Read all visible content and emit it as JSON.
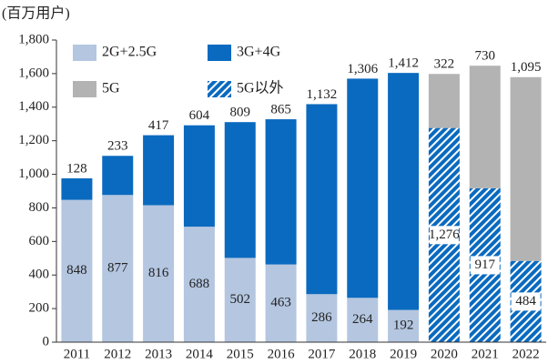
{
  "chart_data": {
    "type": "stacked_bar",
    "y_label": "(百万用户)",
    "categories": [
      "2011",
      "2012",
      "2013",
      "2014",
      "2015",
      "2016",
      "2017",
      "2018",
      "2019",
      "2020",
      "2021",
      "2022"
    ],
    "series": [
      {
        "name": "2G+2.5G",
        "color": "#b4c6e0",
        "values": [
          848,
          877,
          816,
          688,
          502,
          463,
          286,
          264,
          192,
          null,
          null,
          null
        ]
      },
      {
        "name": "3G+4G",
        "color": "#0a6abf",
        "values": [
          128,
          233,
          417,
          604,
          809,
          865,
          1132,
          1306,
          1412,
          null,
          null,
          null
        ],
        "value_labels": [
          "128",
          "233",
          "417",
          "604",
          "809",
          "865",
          "1,132",
          "1,306",
          "1,412",
          null,
          null,
          null
        ]
      },
      {
        "name": "5G",
        "color": "#b3b3b3",
        "values": [
          null,
          null,
          null,
          null,
          null,
          null,
          null,
          null,
          null,
          322,
          730,
          1095
        ],
        "value_labels": [
          null,
          null,
          null,
          null,
          null,
          null,
          null,
          null,
          null,
          "322",
          "730",
          "1,095"
        ]
      },
      {
        "name": "5G以外",
        "color": "#0a6abf",
        "hatch": true,
        "values": [
          null,
          null,
          null,
          null,
          null,
          null,
          null,
          null,
          null,
          1276,
          917,
          484
        ],
        "value_labels": [
          null,
          null,
          null,
          null,
          null,
          null,
          null,
          null,
          null,
          "1,276",
          "917",
          "484"
        ]
      }
    ],
    "ylim": [
      0,
      1800
    ],
    "yticks": [
      0,
      200,
      400,
      600,
      800,
      {
        "value": 1000,
        "label": "1,000"
      },
      {
        "value": 1200,
        "label": "1,200"
      },
      {
        "value": 1400,
        "label": "1,400"
      },
      {
        "value": 1600,
        "label": "1,600"
      },
      {
        "value": 1800,
        "label": "1,800"
      }
    ]
  }
}
